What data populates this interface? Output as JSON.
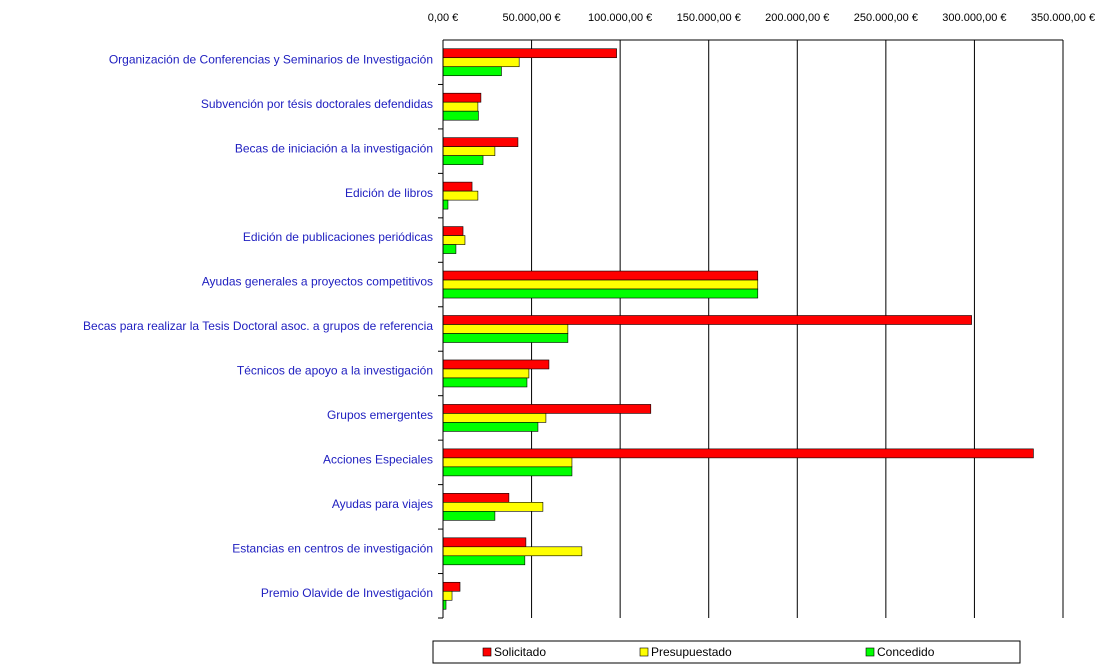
{
  "chart_data": {
    "type": "bar",
    "orientation": "horizontal",
    "categories": [
      "Organización de Conferencias y Seminarios de Investigación",
      "Subvención por tésis doctorales defendidas",
      "Becas de iniciación a la investigación",
      "Edición de libros",
      "Edición de publicaciones periódicas",
      "Ayudas generales a proyectos competitivos",
      "Becas para realizar la Tesis Doctoral asoc. a grupos de referencia",
      "Técnicos de apoyo a la investigación",
      "Grupos emergentes",
      "Acciones Especiales",
      "Ayudas para viajes",
      "Estancias en centros de investigación",
      "Premio Olavide de Investigación"
    ],
    "series": [
      {
        "name": "Solicitado",
        "color": "#ff0000",
        "values": [
          98000,
          21400,
          42300,
          16400,
          11300,
          177700,
          298400,
          59800,
          117300,
          333300,
          37200,
          46800,
          9600
        ]
      },
      {
        "name": "Presupuestado",
        "color": "#ffff00",
        "values": [
          43000,
          19700,
          29300,
          19700,
          12400,
          177700,
          70500,
          48500,
          58100,
          72800,
          56400,
          78400,
          5100
        ]
      },
      {
        "name": "Concedido",
        "color": "#00ff00",
        "values": [
          33000,
          20000,
          22600,
          2800,
          7300,
          177700,
          70500,
          47400,
          53600,
          72800,
          29300,
          46200,
          1700
        ]
      }
    ],
    "xlim": [
      0,
      350000
    ],
    "xticks": [
      {
        "value": 0,
        "label": "0,00 €"
      },
      {
        "value": 50000,
        "label": "50.000,00 €"
      },
      {
        "value": 100000,
        "label": "100.000,00 €"
      },
      {
        "value": 150000,
        "label": "150.000,00 €"
      },
      {
        "value": 200000,
        "label": "200.000,00 €"
      },
      {
        "value": 250000,
        "label": "250.000,00 €"
      },
      {
        "value": 300000,
        "label": "300.000,00 €"
      },
      {
        "value": 350000,
        "label": "350.000,00 €"
      }
    ],
    "grid": true,
    "legend": "bottom"
  }
}
